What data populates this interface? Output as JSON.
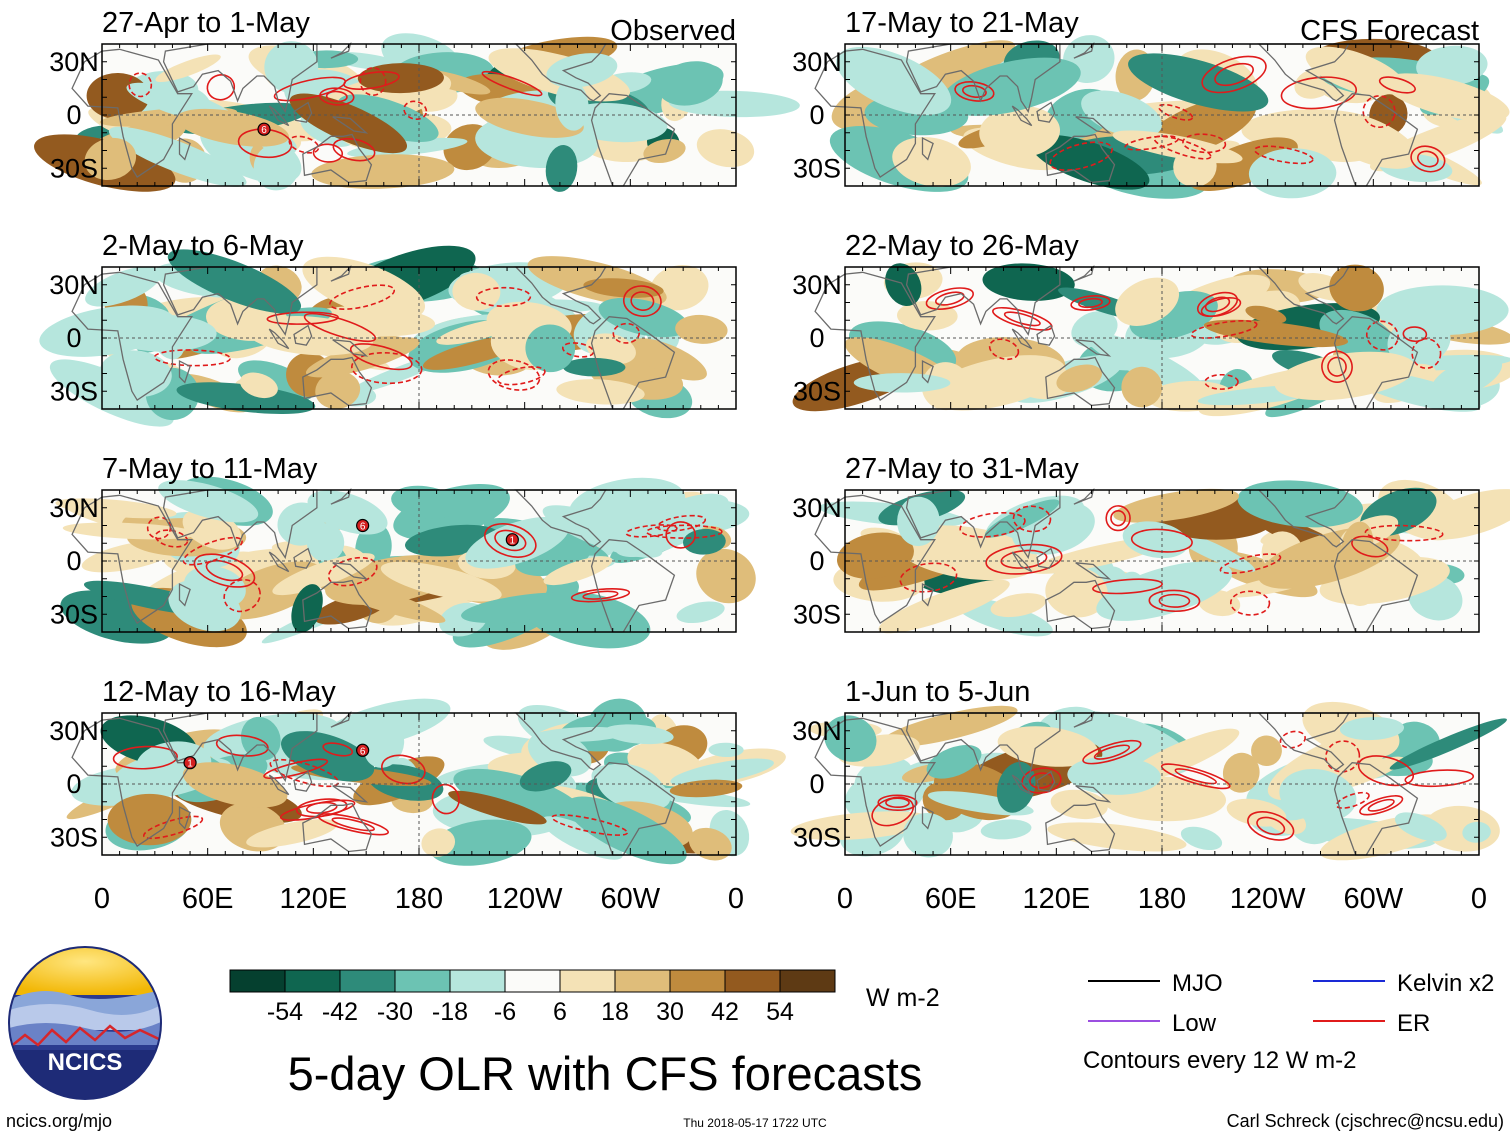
{
  "chart_data": {
    "type": "heatmap",
    "title": "5-day OLR with CFS forecasts",
    "columns": [
      {
        "header": "Observed",
        "panels": [
          "27-Apr to 1-May",
          "2-May to 6-May",
          "7-May to 11-May",
          "12-May to 16-May"
        ]
      },
      {
        "header": "CFS Forecast",
        "panels": [
          "17-May to 21-May",
          "22-May to 26-May",
          "27-May to 31-May",
          "1-Jun to 5-Jun"
        ]
      }
    ],
    "x_ticks": [
      "0",
      "60E",
      "120E",
      "180",
      "120W",
      "60W",
      "0"
    ],
    "x_tick_values": [
      0,
      60,
      120,
      180,
      240,
      300,
      360
    ],
    "xlim": [
      0,
      360
    ],
    "y_ticks": [
      "30N",
      "0",
      "30S"
    ],
    "y_tick_values": [
      30,
      0,
      -30
    ],
    "ylim": [
      -40,
      40
    ],
    "colorbar": {
      "levels": [
        "-54",
        "-42",
        "-30",
        "-18",
        "-6",
        "6",
        "18",
        "30",
        "42",
        "54"
      ],
      "colors": [
        "#05402f",
        "#0f6650",
        "#2e8b7a",
        "#6cc3b3",
        "#b6e6dd",
        "#fbfbf9",
        "#f4e2b6",
        "#dfbd7a",
        "#bf8b3e",
        "#935a1f",
        "#5e3a14"
      ],
      "units": "W m-2"
    },
    "legend": [
      {
        "label": "MJO",
        "color": "#000000"
      },
      {
        "label": "Kelvin x2",
        "color": "#1a2ad6"
      },
      {
        "label": "Low",
        "color": "#9b4fe0"
      },
      {
        "label": "ER",
        "color": "#e01b1b"
      }
    ],
    "contour_note": "Contours every 12 W m-2",
    "storm_markers": [
      {
        "panel": "27-Apr to 1-May",
        "lon": 92,
        "lat": -8,
        "label": "6"
      },
      {
        "panel": "7-May to 11-May",
        "lon": 148,
        "lat": 20,
        "label": "6"
      },
      {
        "panel": "7-May to 11-May",
        "lon": 233,
        "lat": 12,
        "label": "1"
      },
      {
        "panel": "12-May to 16-May",
        "lon": 50,
        "lat": 12,
        "label": "1"
      },
      {
        "panel": "12-May to 16-May",
        "lon": 148,
        "lat": 19,
        "label": "6"
      }
    ]
  },
  "logo": {
    "text": "NCICS"
  },
  "footer": {
    "url": "ncics.org/mjo",
    "timestamp": "Thu 2018-05-17 1722 UTC",
    "author": "Carl Schreck (cjschrec@ncsu.edu)"
  },
  "colors": {
    "frame": "#000000",
    "coast": "#6b6b6b",
    "contour_er": "#e01b1b"
  }
}
